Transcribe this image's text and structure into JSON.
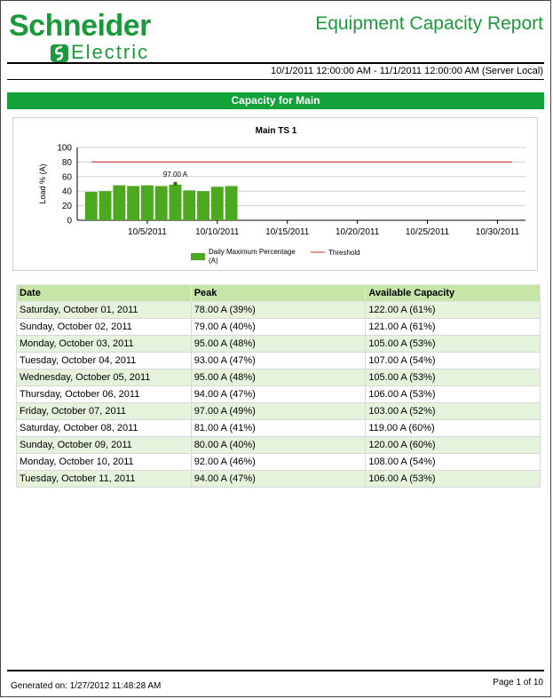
{
  "header": {
    "brand_line1": "Schneider",
    "brand_line2": "Electric",
    "report_title": "Equipment Capacity Report",
    "date_range": "10/1/2011 12:00:00 AM - 11/1/2011 12:00:00 AM (Server Local)"
  },
  "section": {
    "title": "Capacity for Main"
  },
  "chart_data": {
    "type": "bar",
    "title": "Main TS 1",
    "ylabel": "Load % (A)",
    "xlabel": "",
    "ylim": [
      0,
      100
    ],
    "yticks": [
      0,
      20,
      40,
      60,
      80,
      100
    ],
    "xlim": [
      "9/30/2011",
      "11/1/2011"
    ],
    "xtick_labels": [
      "10/5/2011",
      "10/10/2011",
      "10/15/2011",
      "10/20/2011",
      "10/25/2011",
      "10/30/2011"
    ],
    "categories": [
      "10/1/2011",
      "10/2/2011",
      "10/3/2011",
      "10/4/2011",
      "10/5/2011",
      "10/6/2011",
      "10/7/2011",
      "10/8/2011",
      "10/9/2011",
      "10/10/2011",
      "10/11/2011"
    ],
    "series": [
      {
        "name": "Daily Maximum Percentage (A)",
        "color": "#4ca81e",
        "values": [
          39,
          40,
          48,
          47,
          48,
          47,
          49,
          41,
          40,
          46,
          47
        ]
      },
      {
        "name": "Threshold",
        "color": "#d62020",
        "type": "line",
        "value": 80
      }
    ],
    "annotation": {
      "category": "10/7/2011",
      "label": "97.00 A"
    },
    "grid": true,
    "legend_position": "bottom"
  },
  "table": {
    "headers": [
      "Date",
      "Peak",
      "Available Capacity"
    ],
    "rows": [
      [
        "Saturday, October 01, 2011",
        "78.00 A (39%)",
        "122.00 A (61%)"
      ],
      [
        "Sunday, October 02, 2011",
        "79.00 A (40%)",
        "121.00 A (61%)"
      ],
      [
        "Monday, October 03, 2011",
        "95.00 A (48%)",
        "105.00 A (53%)"
      ],
      [
        "Tuesday, October 04, 2011",
        "93.00 A (47%)",
        "107.00 A (54%)"
      ],
      [
        "Wednesday, October 05, 2011",
        "95.00 A (48%)",
        "105.00 A (53%)"
      ],
      [
        "Thursday, October 06, 2011",
        "94.00 A (47%)",
        "106.00 A (53%)"
      ],
      [
        "Friday, October 07, 2011",
        "97.00 A (49%)",
        "103.00 A (52%)"
      ],
      [
        "Saturday, October 08, 2011",
        "81.00 A (41%)",
        "119.00 A (60%)"
      ],
      [
        "Sunday, October 09, 2011",
        "80.00 A (40%)",
        "120.00 A (60%)"
      ],
      [
        "Monday, October 10, 2011",
        "92.00 A (46%)",
        "108.00 A (54%)"
      ],
      [
        "Tuesday, October 11, 2011",
        "94.00 A (47%)",
        "106.00 A (53%)"
      ]
    ]
  },
  "footer": {
    "generated": "Generated on: 1/27/2012 11:48:28 AM",
    "page": "Page 1 of 10"
  }
}
